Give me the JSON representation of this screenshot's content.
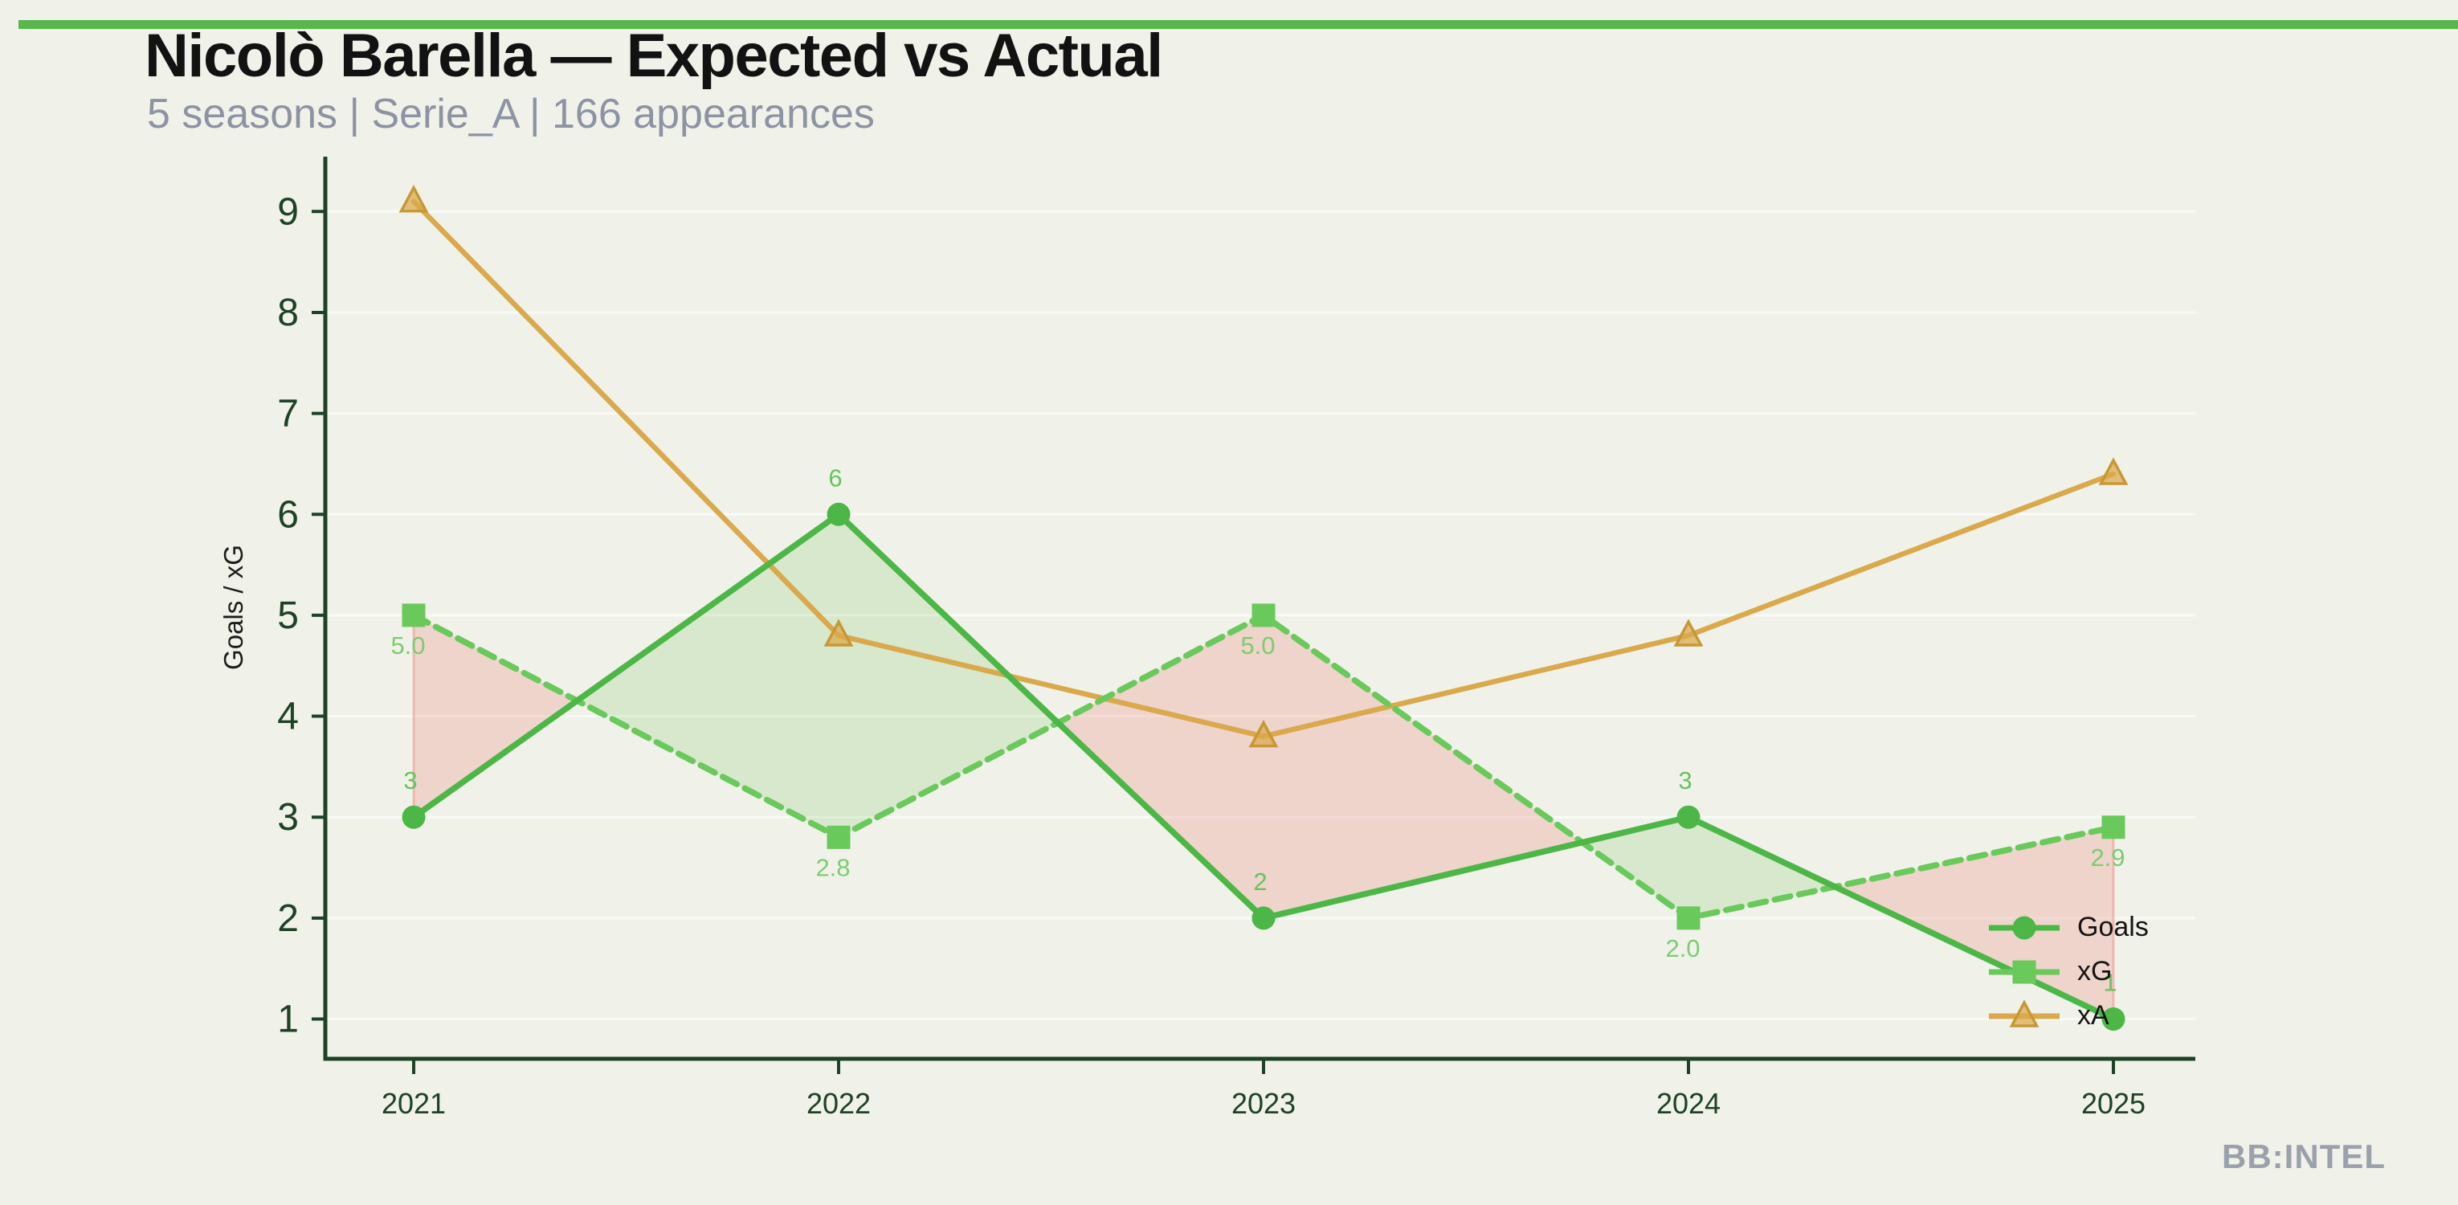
{
  "header": {
    "title": "Nicolò Barella — Expected vs Actual",
    "subtitle": "5 seasons | Serie_A | 166 appearances"
  },
  "watermark": "BB:INTEL",
  "chart_data": {
    "type": "line",
    "title": "Nicolò Barella — Expected vs Actual",
    "subtitle": "5 seasons | Serie_A | 166 appearances",
    "categories": [
      "2021",
      "2022",
      "2023",
      "2024",
      "2025"
    ],
    "series": [
      {
        "name": "Goals",
        "values": [
          3,
          6,
          2,
          3,
          1
        ],
        "labels": [
          "3",
          "6",
          "2",
          "3",
          "1"
        ],
        "label_position": "above",
        "marker": "circle",
        "line_style": "solid",
        "color": "#4cb747",
        "label_color": "#67c35f"
      },
      {
        "name": "xG",
        "values": [
          5.0,
          2.8,
          5.0,
          2.0,
          2.9
        ],
        "labels": [
          "5.0",
          "2.8",
          "5.0",
          "2.0",
          "2.9"
        ],
        "label_position": "below",
        "marker": "square",
        "line_style": "dashed",
        "color": "#69c95b",
        "label_color": "#7ccd70"
      },
      {
        "name": "xA",
        "values": [
          9.1,
          4.8,
          3.8,
          4.8,
          6.4
        ],
        "labels": [],
        "label_position": "none",
        "marker": "triangle",
        "line_style": "solid",
        "color": "#d9a94c",
        "marker_edge_color": "#c79834"
      }
    ],
    "xlabel": "",
    "ylabel": "Goals / xG",
    "y_ticks": [
      1,
      2,
      3,
      4,
      5,
      6,
      7,
      8,
      9
    ],
    "ylim": [
      0.6,
      9.55
    ],
    "grid": "horizontal",
    "legend": {
      "position": "lower right",
      "entries": [
        "Goals",
        "xG",
        "xA"
      ]
    },
    "fill_between": {
      "description": "area between Goals and xG; green where Goals > xG, pink where xG > Goals"
    }
  },
  "colors": {
    "background": "#f0f2e9",
    "topbar": "#57b74d",
    "title": "#121212",
    "subtitle": "#8c93a2",
    "axis": "#1e4226",
    "tick_label": "#1e4226",
    "ylabel_text": "#1c1c1c",
    "gridline": "rgba(255,255,255,0.62)",
    "fill_surplus_green": "rgba(118,196,96,0.20)",
    "fill_deficit_pink": "rgba(232,128,116,0.26)",
    "fill_edge_pink": "rgba(236,150,140,0.55)",
    "legend_text": "#141414",
    "watermark": "#9aa1ac"
  }
}
